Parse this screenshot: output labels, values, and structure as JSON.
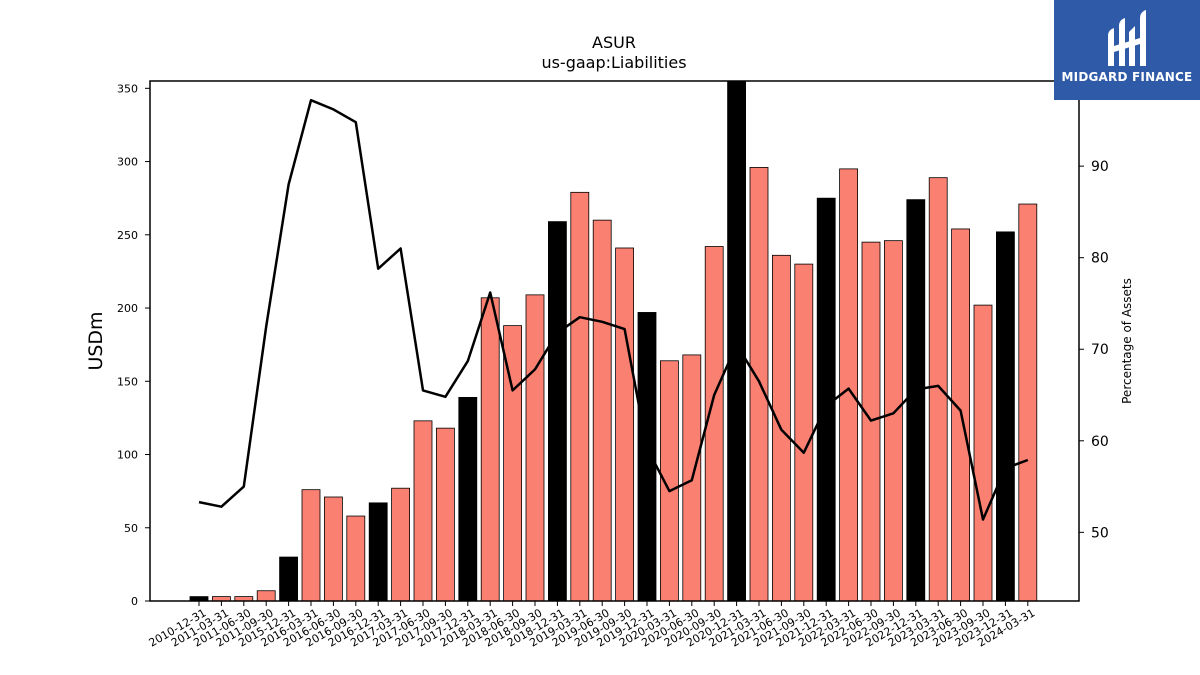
{
  "chart_data": {
    "type": "bar",
    "title": "ASUR",
    "subtitle": "us-gaap:Liabilities",
    "ylabel": "USDm",
    "y2label": "Percentage of Assets",
    "ylim": [
      0,
      355
    ],
    "y2lim": [
      42.5,
      99.3
    ],
    "yticks": [
      0,
      50,
      100,
      150,
      200,
      250,
      300,
      350
    ],
    "y2ticks": [
      50,
      60,
      70,
      80,
      90
    ],
    "categories": [
      "2010-12-31",
      "2011-03-31",
      "2011-06-30",
      "2011-09-30",
      "2015-12-31",
      "2016-03-31",
      "2016-06-30",
      "2016-09-30",
      "2016-12-31",
      "2017-03-31",
      "2017-06-30",
      "2017-09-30",
      "2017-12-31",
      "2018-03-31",
      "2018-06-30",
      "2018-09-30",
      "2018-12-31",
      "2019-03-31",
      "2019-06-30",
      "2019-09-30",
      "2019-12-31",
      "2020-03-31",
      "2020-06-30",
      "2020-09-30",
      "2020-12-31",
      "2021-03-31",
      "2021-06-30",
      "2021-09-30",
      "2021-12-31",
      "2022-03-31",
      "2022-06-30",
      "2022-09-30",
      "2022-12-31",
      "2023-03-31",
      "2023-06-30",
      "2023-09-30",
      "2023-12-31",
      "2024-03-31"
    ],
    "series": [
      {
        "kind": "bar",
        "axis": "left",
        "values": [
          3,
          3,
          3,
          7,
          30,
          76,
          71,
          58,
          67,
          77,
          123,
          118,
          139,
          207,
          188,
          209,
          259,
          279,
          260,
          241,
          197,
          164,
          168,
          242,
          356,
          296,
          236,
          230,
          275,
          295,
          245,
          246,
          274,
          289,
          254,
          202,
          252,
          271
        ],
        "highlight": [
          true,
          false,
          false,
          false,
          true,
          false,
          false,
          false,
          true,
          false,
          false,
          false,
          true,
          false,
          false,
          false,
          true,
          false,
          false,
          false,
          true,
          false,
          false,
          false,
          true,
          false,
          false,
          false,
          true,
          false,
          false,
          false,
          true,
          false,
          false,
          false,
          true,
          false
        ]
      },
      {
        "kind": "line",
        "axis": "right",
        "values": [
          53.3,
          52.8,
          55.0,
          72.5,
          88.0,
          97.2,
          96.2,
          94.8,
          78.8,
          81.0,
          65.5,
          64.8,
          68.7,
          76.2,
          65.5,
          67.8,
          71.8,
          73.5,
          73.0,
          72.2,
          59.2,
          54.5,
          55.7,
          65.0,
          70.5,
          66.5,
          61.2,
          58.7,
          63.8,
          65.7,
          62.2,
          63.0,
          65.6,
          66.0,
          63.3,
          51.4,
          57.0,
          57.9
        ]
      }
    ],
    "colors": {
      "bar": "#fa8072",
      "highlight": "#000000",
      "line": "#000000",
      "edge": "#000000"
    },
    "grid": false
  },
  "logo": {
    "text": "MIDGARD FINANCE"
  }
}
